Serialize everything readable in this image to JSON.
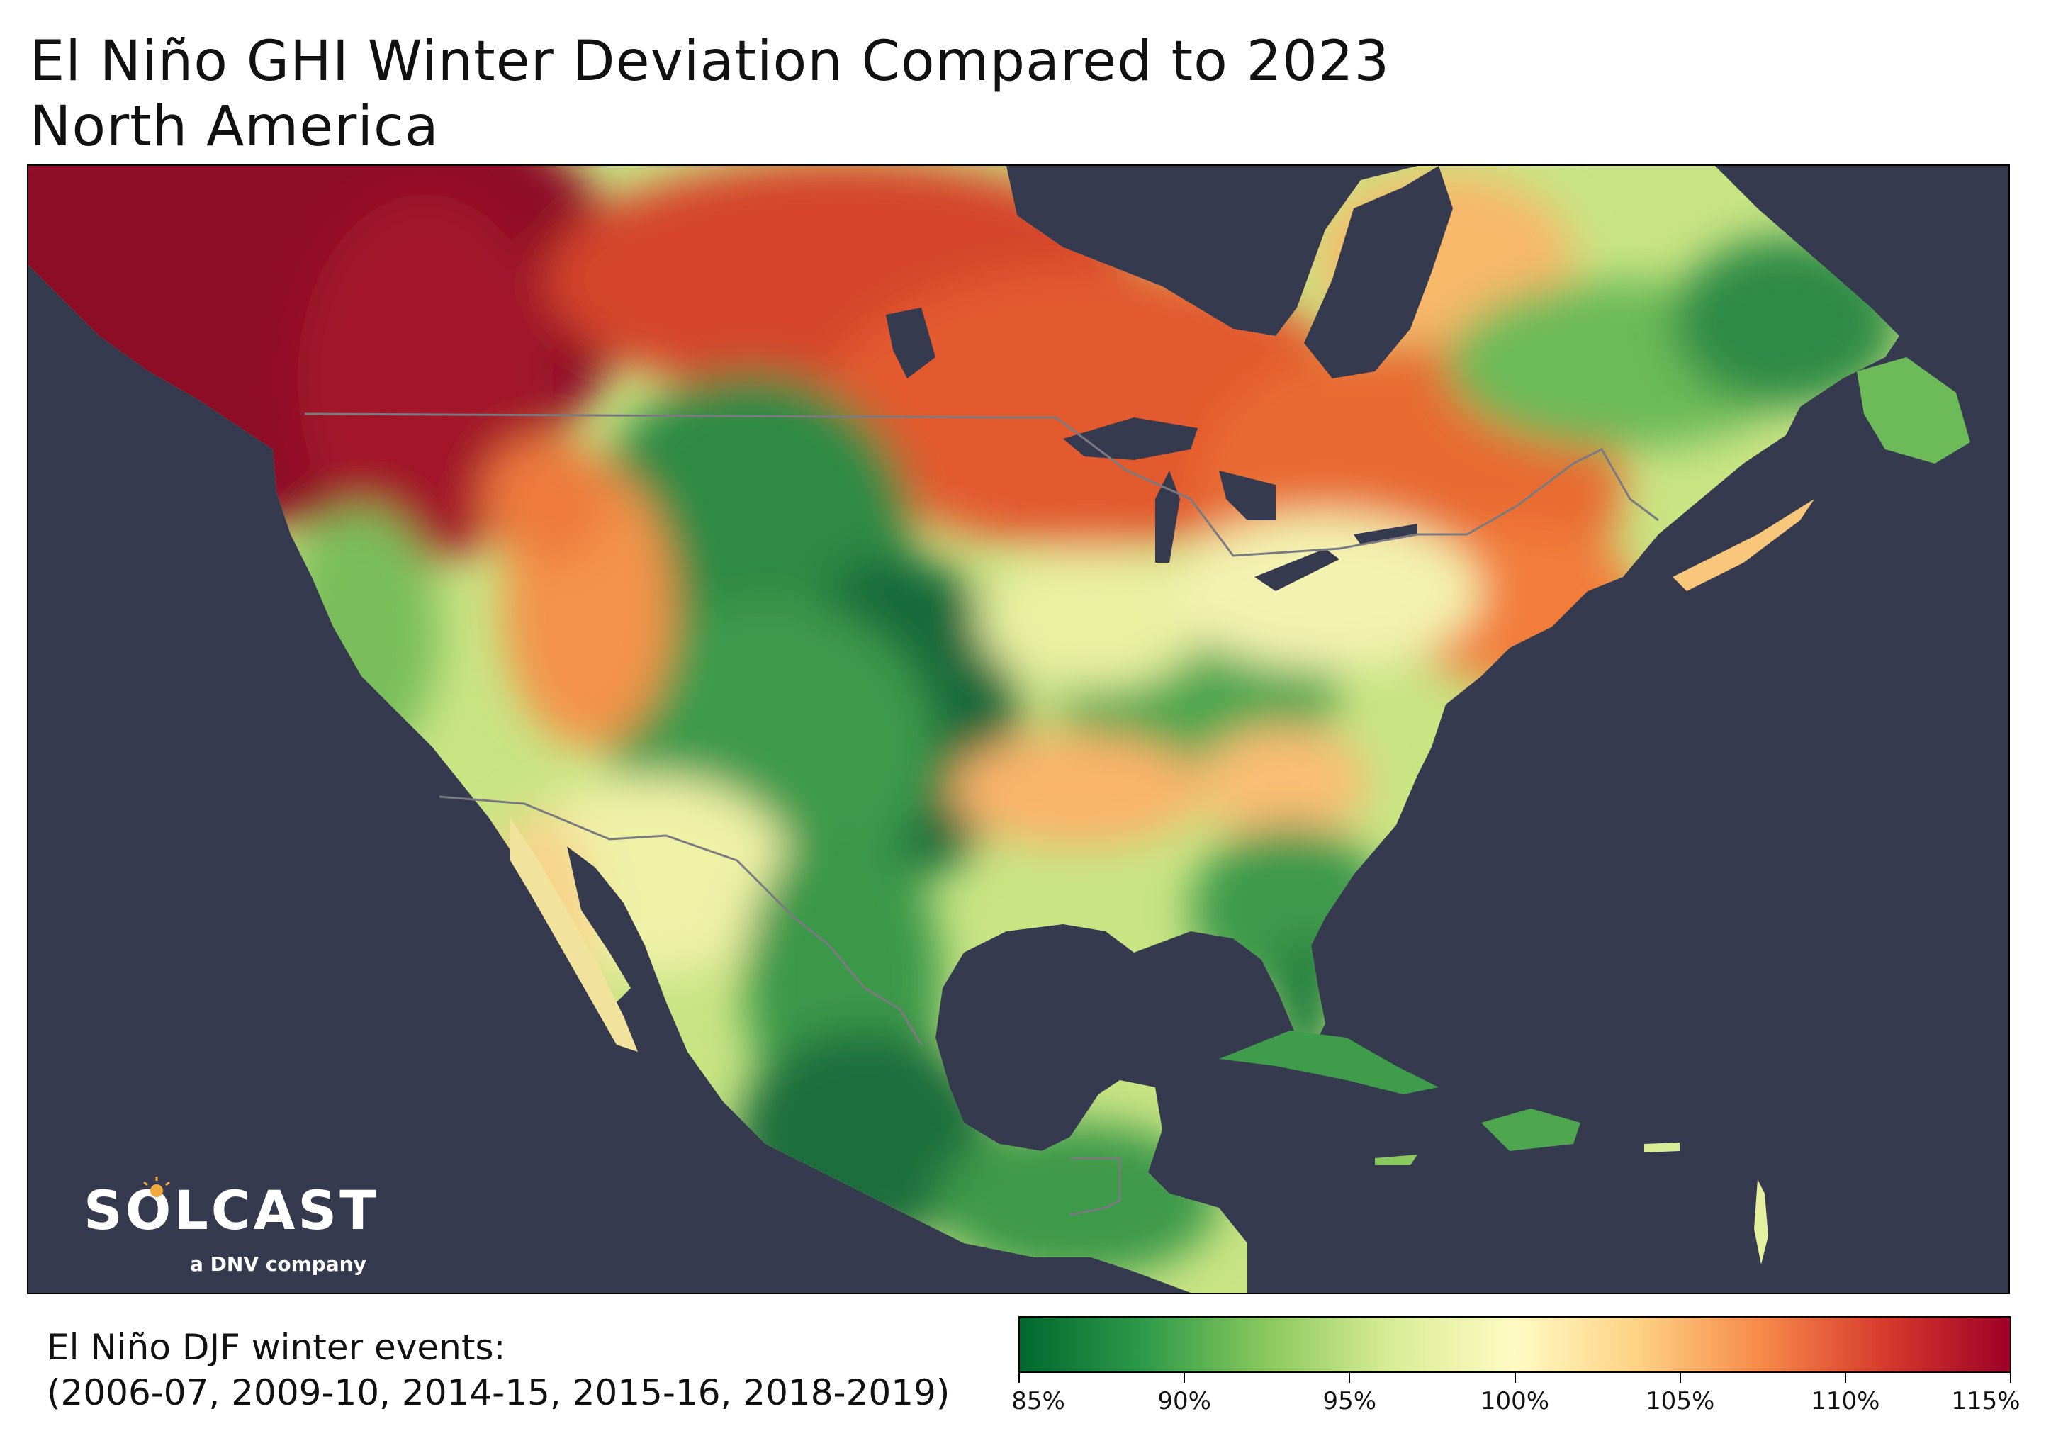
{
  "title": {
    "line1": "El Niño GHI Winter Deviation Compared to 2023",
    "line2": "North America"
  },
  "map": {
    "background_color": "#363A4F",
    "border_color": "#7A7A80",
    "region_colors": {
      "strong_above": "#8E0F25",
      "above": "#E5522B",
      "slightly_above": "#F9B46A",
      "neutral": "#F6F4B4",
      "slightly_below": "#B7DD73",
      "below": "#5DB55A",
      "strong_below": "#15693A"
    }
  },
  "logo": {
    "brand": "SOLCAST",
    "subtitle": "a DNV company"
  },
  "footnote": {
    "line1": "El Niño DJF winter events:",
    "line2": "(2006-07, 2009-10, 2014-15, 2015-16, 2018-2019)"
  },
  "colorbar": {
    "min": 85,
    "max": 115,
    "colors": [
      "#00682F",
      "#2E9A4A",
      "#8AC95D",
      "#D9EC95",
      "#FFFBC4",
      "#FDD183",
      "#F7894A",
      "#D63A2C",
      "#9E0027"
    ],
    "ticks": [
      "85%",
      "90%",
      "95%",
      "100%",
      "105%",
      "110%",
      "115%"
    ],
    "tick_values": [
      85,
      90,
      95,
      100,
      105,
      110,
      115
    ]
  }
}
